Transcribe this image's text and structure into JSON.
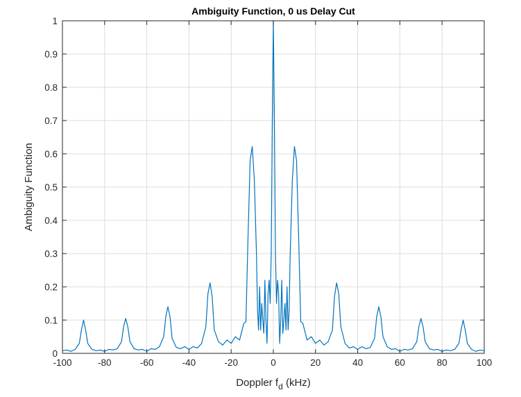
{
  "chart_data": {
    "type": "line",
    "title": "Ambiguity Function, 0 us Delay Cut",
    "xlabel": {
      "main": "Doppler f",
      "subscript": "d",
      "suffix": " (kHz)"
    },
    "ylabel": "Ambiguity Function",
    "xlim": [
      -100,
      100
    ],
    "ylim": [
      0,
      1
    ],
    "xticks": [
      -100,
      -80,
      -60,
      -40,
      -20,
      0,
      20,
      40,
      60,
      80,
      100
    ],
    "yticks": [
      0,
      0.1,
      0.2,
      0.3,
      0.4,
      0.5,
      0.6,
      0.7,
      0.8,
      0.9,
      1
    ],
    "ytick_labels": [
      "0",
      "0.1",
      "0.2",
      "0.3",
      "0.4",
      "0.5",
      "0.6",
      "0.7",
      "0.8",
      "0.9",
      "1"
    ],
    "grid": true,
    "line_color": "#0072bd",
    "series": [
      {
        "x": [
          -100,
          -98,
          -96,
          -94,
          -92,
          -91,
          -90,
          -89,
          -88,
          -86,
          -84,
          -82,
          -80,
          -78,
          -76,
          -74,
          -72,
          -71,
          -70,
          -69,
          -68,
          -66,
          -64,
          -62,
          -60,
          -58,
          -56,
          -54,
          -52,
          -51,
          -50,
          -49,
          -48,
          -46,
          -44,
          -42,
          -40,
          -38,
          -36,
          -34,
          -32,
          -31,
          -30,
          -29,
          -28,
          -26,
          -24,
          -22,
          -20,
          -18,
          -16,
          -14,
          -13,
          -12,
          -11,
          -10,
          -9,
          -8,
          -7.5,
          -7,
          -6.5,
          -6,
          -5.5,
          -5,
          -4.5,
          -4,
          -3.5,
          -3,
          -2.5,
          -2,
          -1.5,
          -1,
          -0.5,
          0,
          0.5,
          1,
          1.5,
          2,
          2.5,
          3,
          3.5,
          4,
          4.5,
          5,
          5.5,
          6,
          6.5,
          7,
          7.5,
          8,
          9,
          10,
          11,
          12,
          13,
          14,
          16,
          18,
          20,
          22,
          24,
          26,
          28,
          29,
          30,
          31,
          32,
          34,
          36,
          38,
          40,
          42,
          44,
          46,
          48,
          49,
          50,
          51,
          52,
          54,
          56,
          58,
          60,
          62,
          64,
          66,
          68,
          69,
          70,
          71,
          72,
          74,
          76,
          78,
          80,
          82,
          84,
          86,
          88,
          89,
          90,
          91,
          92,
          94,
          96,
          98,
          100
        ],
        "y": [
          0.008,
          0.01,
          0.006,
          0.012,
          0.03,
          0.07,
          0.1,
          0.07,
          0.03,
          0.012,
          0.008,
          0.01,
          0.006,
          0.012,
          0.01,
          0.014,
          0.035,
          0.08,
          0.105,
          0.08,
          0.035,
          0.014,
          0.01,
          0.012,
          0.006,
          0.014,
          0.012,
          0.02,
          0.05,
          0.11,
          0.14,
          0.11,
          0.045,
          0.018,
          0.014,
          0.02,
          0.012,
          0.02,
          0.016,
          0.03,
          0.08,
          0.18,
          0.212,
          0.17,
          0.07,
          0.035,
          0.025,
          0.04,
          0.03,
          0.05,
          0.04,
          0.09,
          0.095,
          0.35,
          0.58,
          0.622,
          0.52,
          0.3,
          0.13,
          0.07,
          0.2,
          0.07,
          0.15,
          0.1,
          0.06,
          0.22,
          0.1,
          0.03,
          0.18,
          0.22,
          0.15,
          0.3,
          0.7,
          1.0,
          0.7,
          0.3,
          0.15,
          0.22,
          0.18,
          0.03,
          0.1,
          0.22,
          0.06,
          0.1,
          0.15,
          0.07,
          0.2,
          0.07,
          0.13,
          0.3,
          0.52,
          0.622,
          0.58,
          0.35,
          0.095,
          0.09,
          0.04,
          0.05,
          0.03,
          0.04,
          0.025,
          0.035,
          0.07,
          0.17,
          0.212,
          0.18,
          0.08,
          0.03,
          0.016,
          0.02,
          0.012,
          0.02,
          0.014,
          0.018,
          0.045,
          0.11,
          0.14,
          0.11,
          0.05,
          0.02,
          0.012,
          0.014,
          0.006,
          0.012,
          0.01,
          0.014,
          0.035,
          0.08,
          0.105,
          0.08,
          0.035,
          0.014,
          0.01,
          0.012,
          0.006,
          0.01,
          0.008,
          0.012,
          0.03,
          0.07,
          0.1,
          0.07,
          0.03,
          0.012,
          0.006,
          0.01,
          0.008
        ]
      }
    ]
  }
}
